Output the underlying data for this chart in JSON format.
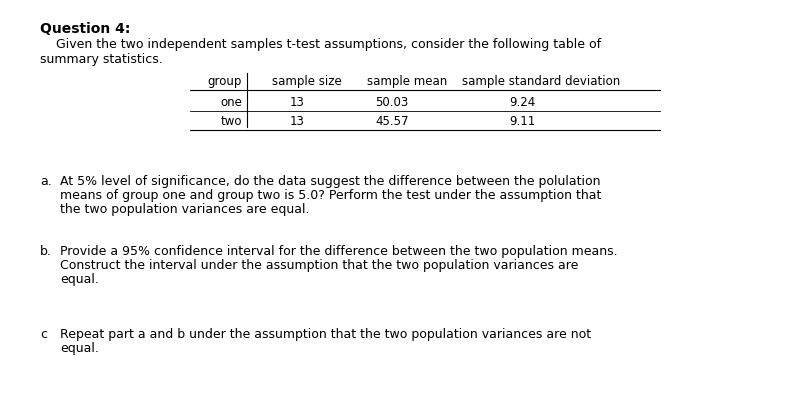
{
  "background_color": "#ffffff",
  "title": "Question 4:",
  "intro_line1": "    Given the two independent samples t-test assumptions, consider the following table of",
  "intro_line2": "summary statistics.",
  "table_headers": [
    "group",
    "sample size",
    "sample mean",
    "sample standard deviation"
  ],
  "table_rows": [
    [
      "one",
      "13",
      "50.03",
      "9.24"
    ],
    [
      "two",
      "13",
      "45.57",
      "9.11"
    ]
  ],
  "qa_label": "a.",
  "qa_lines": [
    "At 5% level of significance, do the data suggest the difference between the polulation",
    "means of group one and group two is 5.0? Perform the test under the assumption that",
    "the two population variances are equal."
  ],
  "qb_label": "b.",
  "qb_lines": [
    "Provide a 95% confidence interval for the difference between the two population means.",
    "Construct the interval under the assumption that the two population variances are",
    "equal."
  ],
  "qc_label": "c",
  "qc_lines": [
    "Repeat part a and b under the assumption that the two population variances are not",
    "equal."
  ],
  "font_size_title": 10,
  "font_size_body": 9,
  "font_size_table": 8.5,
  "title_bold": true
}
